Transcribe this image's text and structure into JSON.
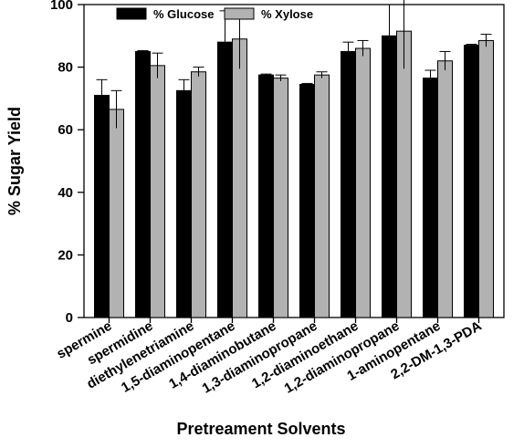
{
  "chart_data": {
    "type": "bar",
    "xlabel": "Pretreament Solvents",
    "ylabel": "% Sugar Yield",
    "ylim": [
      0,
      100
    ],
    "yticks": [
      0,
      20,
      40,
      60,
      80,
      100
    ],
    "grid": false,
    "legend_position": "top",
    "categories": [
      "spermine",
      "spermidine",
      "diethylenetriamine",
      "1,5-diaminopentane",
      "1,4-diaminobutane",
      "1,3-diaminopropane",
      "1,2-diaminoethane",
      "1,2-diaminopropane",
      "1-aminopentane",
      "2,2-DM-1,3-PDA"
    ],
    "series": [
      {
        "name": "% Glucose",
        "color": "#000000",
        "values": [
          71,
          85,
          72.5,
          88,
          77.5,
          74.5,
          85,
          90,
          76.5,
          87
        ],
        "errors": [
          5,
          0.3,
          3.5,
          10,
          0.3,
          0.3,
          3,
          10,
          2.5,
          0.3
        ]
      },
      {
        "name": "% Xylose",
        "color": "#b2b2b2",
        "values": [
          66.5,
          80.5,
          78.5,
          89,
          76.5,
          77.5,
          86,
          91.5,
          82,
          88.5
        ],
        "errors": [
          6,
          4,
          1.5,
          9.5,
          1,
          1,
          2.5,
          12,
          3,
          2
        ]
      }
    ]
  }
}
